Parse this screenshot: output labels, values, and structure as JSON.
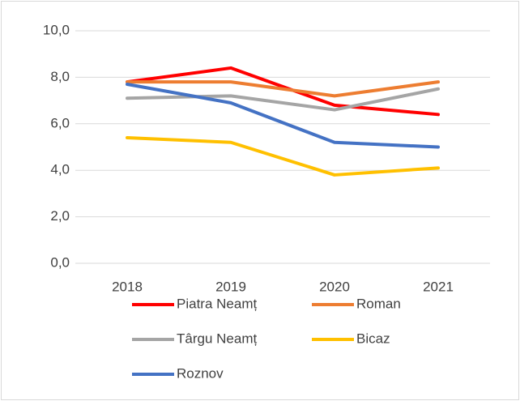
{
  "chart_data": {
    "type": "line",
    "categories": [
      "2018",
      "2019",
      "2020",
      "2021"
    ],
    "series": [
      {
        "name": "Piatra Neamț",
        "color": "#ff0000",
        "values": [
          7.8,
          8.4,
          6.8,
          6.4
        ]
      },
      {
        "name": "Roman",
        "color": "#ed7d31",
        "values": [
          7.8,
          7.8,
          7.2,
          7.8
        ]
      },
      {
        "name": "Târgu Neamț",
        "color": "#a5a5a5",
        "values": [
          7.1,
          7.2,
          6.6,
          7.5
        ]
      },
      {
        "name": "Bicaz",
        "color": "#ffc000",
        "values": [
          5.4,
          5.2,
          3.8,
          4.1
        ]
      },
      {
        "name": "Roznov",
        "color": "#4472c4",
        "values": [
          7.7,
          6.9,
          5.2,
          5.0
        ]
      }
    ],
    "ylim": [
      0,
      10
    ],
    "yticks": [
      {
        "value": 0,
        "label": "0,0"
      },
      {
        "value": 2,
        "label": "2,0"
      },
      {
        "value": 4,
        "label": "4,0"
      },
      {
        "value": 6,
        "label": "6,0"
      },
      {
        "value": 8,
        "label": "8,0"
      },
      {
        "value": 10,
        "label": "10,0"
      }
    ],
    "grid": true
  }
}
